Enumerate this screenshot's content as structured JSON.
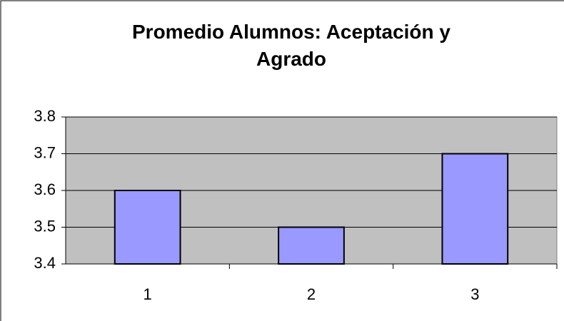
{
  "chart_data": {
    "type": "bar",
    "title": "Promedio Alumnos: Aceptación y Agrado",
    "categories": [
      "1",
      "2",
      "3"
    ],
    "values": [
      3.6,
      3.5,
      3.7
    ],
    "color": "#9999ff",
    "ylim": [
      3.4,
      3.8
    ],
    "yticks": [
      3.4,
      3.5,
      3.6,
      3.7,
      3.8
    ],
    "grid": true
  }
}
